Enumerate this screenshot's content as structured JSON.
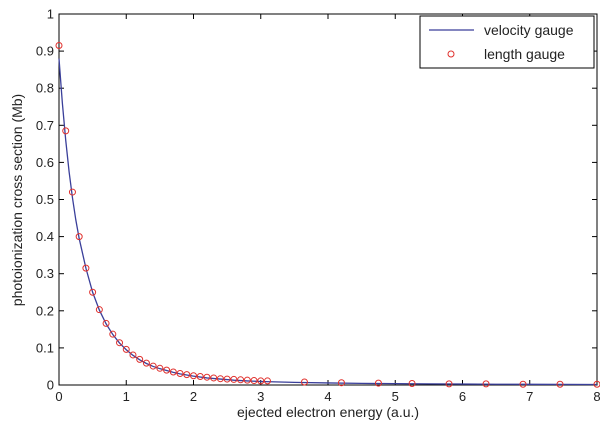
{
  "chart_data": {
    "type": "line",
    "xlabel": "ejected electron energy (a.u.)",
    "ylabel": "photoionization cross section (Mb)",
    "xlim": [
      0,
      8
    ],
    "ylim": [
      0,
      1
    ],
    "xticks": [
      "0",
      "1",
      "2",
      "3",
      "4",
      "5",
      "6",
      "7",
      "8"
    ],
    "yticks": [
      "0",
      "0.1",
      "0.2",
      "0.3",
      "0.4",
      "0.5",
      "0.6",
      "0.7",
      "0.8",
      "0.9",
      "1"
    ],
    "grid": false,
    "legend_position": "top-right",
    "series": [
      {
        "name": "velocity gauge",
        "style": "line",
        "color": "#3a3f9a",
        "x": [
          0,
          0.05,
          0.1,
          0.15,
          0.2,
          0.25,
          0.3,
          0.4,
          0.5,
          0.6,
          0.7,
          0.8,
          0.9,
          1.0,
          1.1,
          1.2,
          1.3,
          1.4,
          1.5,
          1.6,
          1.7,
          1.8,
          1.9,
          2.0,
          2.2,
          2.4,
          2.6,
          2.8,
          3.0,
          3.5,
          4.0,
          4.5,
          5.0,
          5.5,
          6.0,
          6.5,
          7.0,
          7.5,
          8.0
        ],
        "y": [
          0.88,
          0.76,
          0.66,
          0.575,
          0.505,
          0.445,
          0.395,
          0.315,
          0.25,
          0.202,
          0.165,
          0.136,
          0.113,
          0.095,
          0.08,
          0.068,
          0.058,
          0.05,
          0.044,
          0.039,
          0.034,
          0.03,
          0.027,
          0.024,
          0.019,
          0.016,
          0.013,
          0.011,
          0.0095,
          0.007,
          0.0055,
          0.0044,
          0.0036,
          0.003,
          0.0025,
          0.0021,
          0.0018,
          0.0016,
          0.0014
        ]
      },
      {
        "name": "length gauge",
        "style": "markers",
        "color": "#e0302c",
        "x": [
          0.0,
          0.1,
          0.2,
          0.3,
          0.4,
          0.5,
          0.6,
          0.7,
          0.8,
          0.9,
          1.0,
          1.1,
          1.2,
          1.3,
          1.4,
          1.5,
          1.6,
          1.7,
          1.8,
          1.9,
          2.0,
          2.1,
          2.2,
          2.3,
          2.4,
          2.5,
          2.6,
          2.7,
          2.8,
          2.9,
          3.0,
          3.1,
          3.65,
          4.2,
          4.75,
          5.25,
          5.8,
          6.35,
          6.9,
          7.45,
          8.0
        ],
        "y": [
          0.915,
          0.685,
          0.52,
          0.4,
          0.315,
          0.25,
          0.203,
          0.166,
          0.137,
          0.114,
          0.096,
          0.081,
          0.069,
          0.059,
          0.051,
          0.045,
          0.04,
          0.035,
          0.031,
          0.028,
          0.025,
          0.023,
          0.021,
          0.019,
          0.017,
          0.016,
          0.015,
          0.014,
          0.013,
          0.012,
          0.011,
          0.011,
          0.008,
          0.006,
          0.005,
          0.004,
          0.003,
          0.003,
          0.002,
          0.002,
          0.002
        ]
      }
    ]
  }
}
